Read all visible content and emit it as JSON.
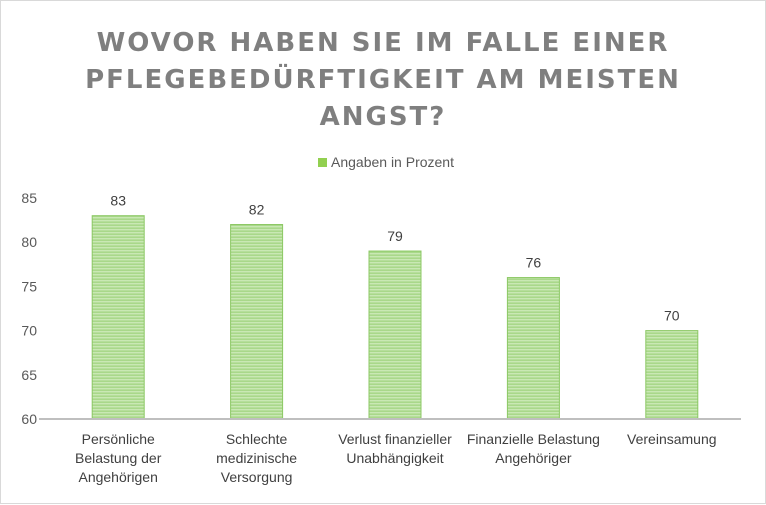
{
  "chart_data": {
    "type": "bar",
    "title_lines": [
      "WOVOR HABEN SIE IM FALLE EINER",
      "PFLEGEBEDÜRFTIGKEIT AM MEISTEN",
      "ANGST?"
    ],
    "categories": [
      [
        "Persönliche",
        "Belastung der",
        "Angehörigen"
      ],
      [
        "Schlechte",
        "medizinische",
        "Versorgung"
      ],
      [
        "Verlust finanzieller",
        "Unabhängigkeit"
      ],
      [
        "Finanzielle Belastung",
        "Angehöriger"
      ],
      [
        "Vereinsamung"
      ]
    ],
    "series": [
      {
        "name": "Angaben in Prozent",
        "values": [
          83,
          82,
          79,
          76,
          70
        ]
      }
    ],
    "ylim": [
      60,
      85
    ],
    "yticks": [
      60,
      65,
      70,
      75,
      80,
      85
    ],
    "grid": false,
    "legend_position": "top",
    "bar_color": "#92d050"
  }
}
